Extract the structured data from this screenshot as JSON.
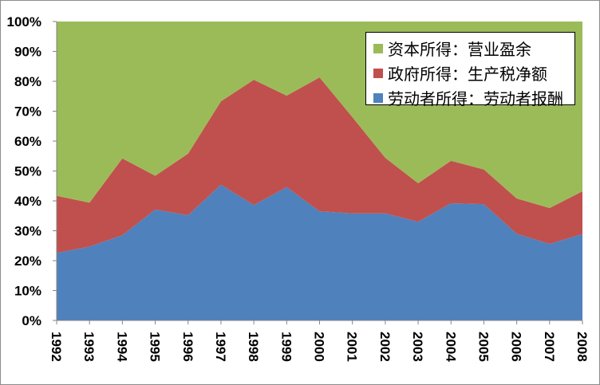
{
  "chart_data": {
    "type": "area",
    "stacked": "percent",
    "title": "",
    "xlabel": "",
    "ylabel": "",
    "x": [
      "1992",
      "1993",
      "1994",
      "1995",
      "1996",
      "1997",
      "1998",
      "1999",
      "2000",
      "2001",
      "2002",
      "2003",
      "2004",
      "2005",
      "2006",
      "2007",
      "2008"
    ],
    "ylim": [
      0,
      100
    ],
    "yticks": [
      "0%",
      "10%",
      "20%",
      "30%",
      "40%",
      "50%",
      "60%",
      "70%",
      "80%",
      "90%",
      "100%"
    ],
    "legend_position": "top-right",
    "series": [
      {
        "name": "劳动者所得：劳动者报酬",
        "color": "#4f81bd",
        "values": [
          22.6,
          24.7,
          28.5,
          37.1,
          35.2,
          45.4,
          38.6,
          44.6,
          36.5,
          35.8,
          35.8,
          33.0,
          39.2,
          38.9,
          29.0,
          25.6,
          28.9
        ]
      },
      {
        "name": "政府所得：生产税净额",
        "color": "#c0504d",
        "values": [
          19.1,
          14.7,
          25.7,
          11.3,
          20.6,
          27.9,
          41.9,
          30.6,
          44.8,
          32.2,
          18.6,
          12.9,
          14.2,
          11.6,
          11.8,
          12.0,
          14.3
        ]
      },
      {
        "name": "资本所得：营业盈余",
        "color": "#9bbb59",
        "values": [
          58.3,
          60.6,
          45.8,
          51.6,
          44.2,
          26.7,
          19.5,
          24.8,
          18.7,
          32.0,
          45.6,
          54.1,
          46.6,
          49.5,
          59.2,
          62.4,
          56.8
        ]
      }
    ]
  }
}
